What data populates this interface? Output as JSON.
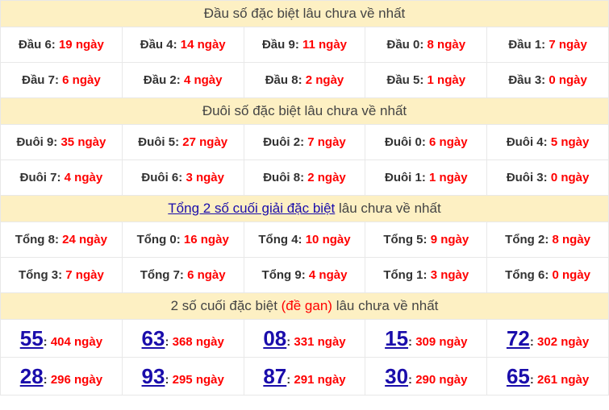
{
  "sections": [
    {
      "title": "Đầu số đặc biệt lâu chưa về nhất",
      "rows": [
        [
          {
            "label": "Đầu 6",
            "value": "19 ngày"
          },
          {
            "label": "Đầu 4",
            "value": "14 ngày"
          },
          {
            "label": "Đầu 9",
            "value": "11 ngày"
          },
          {
            "label": "Đầu 0",
            "value": "8 ngày"
          },
          {
            "label": "Đầu 1",
            "value": "7 ngày"
          }
        ],
        [
          {
            "label": "Đầu 7",
            "value": "6 ngày"
          },
          {
            "label": "Đầu 2",
            "value": "4 ngày"
          },
          {
            "label": "Đầu 8",
            "value": "2 ngày"
          },
          {
            "label": "Đầu 5",
            "value": "1 ngày"
          },
          {
            "label": "Đầu 3",
            "value": "0 ngày"
          }
        ]
      ]
    },
    {
      "title": "Đuôi số đặc biệt lâu chưa về nhất",
      "rows": [
        [
          {
            "label": "Đuôi 9",
            "value": "35 ngày"
          },
          {
            "label": "Đuôi 5",
            "value": "27 ngày"
          },
          {
            "label": "Đuôi 2",
            "value": "7 ngày"
          },
          {
            "label": "Đuôi 0",
            "value": "6 ngày"
          },
          {
            "label": "Đuôi 4",
            "value": "5 ngày"
          }
        ],
        [
          {
            "label": "Đuôi 7",
            "value": "4 ngày"
          },
          {
            "label": "Đuôi 6",
            "value": "3 ngày"
          },
          {
            "label": "Đuôi 8",
            "value": "2 ngày"
          },
          {
            "label": "Đuôi 1",
            "value": "1 ngày"
          },
          {
            "label": "Đuôi 3",
            "value": "0 ngày"
          }
        ]
      ]
    },
    {
      "title_link": "Tổng 2 số cuối giải đặc biệt",
      "title_rest": " lâu chưa về nhất",
      "rows": [
        [
          {
            "label": "Tổng 8",
            "value": "24 ngày"
          },
          {
            "label": "Tổng 0",
            "value": "16 ngày"
          },
          {
            "label": "Tổng 4",
            "value": "10 ngày"
          },
          {
            "label": "Tổng 5",
            "value": "9 ngày"
          },
          {
            "label": "Tổng 2",
            "value": "8 ngày"
          }
        ],
        [
          {
            "label": "Tổng 3",
            "value": "7 ngày"
          },
          {
            "label": "Tổng 7",
            "value": "6 ngày"
          },
          {
            "label": "Tổng 9",
            "value": "4 ngày"
          },
          {
            "label": "Tổng 1",
            "value": "3 ngày"
          },
          {
            "label": "Tổng 6",
            "value": "0 ngày"
          }
        ]
      ]
    },
    {
      "title_pre": "2 số cuối đặc biệt ",
      "title_red": "(đề gan)",
      "title_rest": " lâu chưa về nhất",
      "rows": [
        [
          {
            "label": "55",
            "value": "404 ngày"
          },
          {
            "label": "63",
            "value": "368 ngày"
          },
          {
            "label": "08",
            "value": "331 ngày"
          },
          {
            "label": "15",
            "value": "309 ngày"
          },
          {
            "label": "72",
            "value": "302 ngày"
          }
        ],
        [
          {
            "label": "28",
            "value": "296 ngày"
          },
          {
            "label": "93",
            "value": "295 ngày"
          },
          {
            "label": "87",
            "value": "291 ngày"
          },
          {
            "label": "30",
            "value": "290 ngày"
          },
          {
            "label": "65",
            "value": "261 ngày"
          }
        ]
      ]
    }
  ]
}
